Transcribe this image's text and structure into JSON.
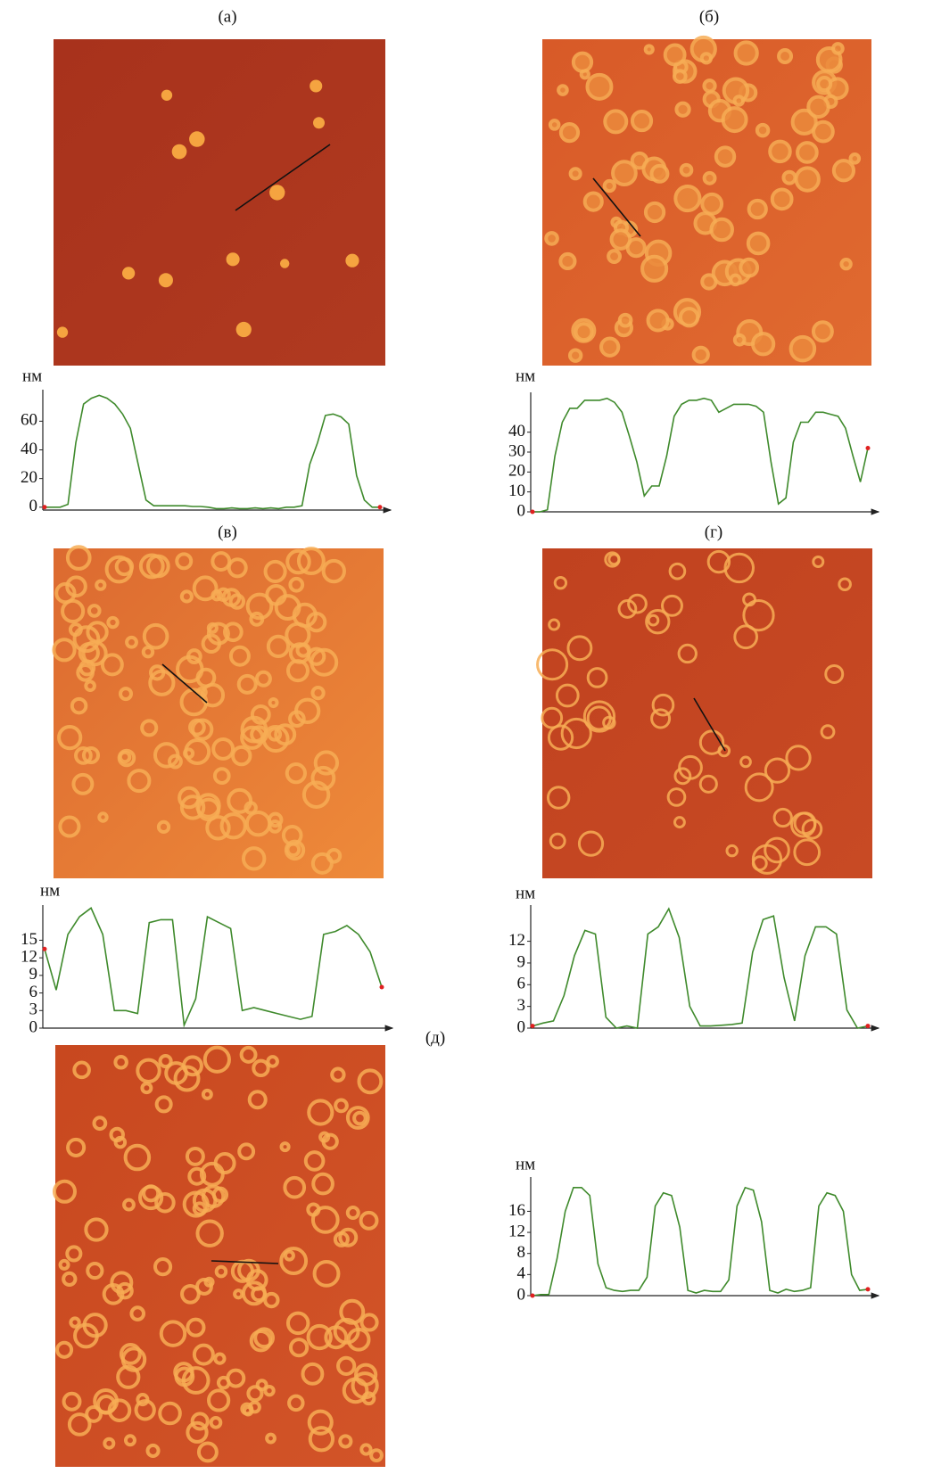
{
  "chart_data": [
    {
      "type": "line",
      "title": "(а)",
      "ylabel": "нм",
      "color": "#3f8a2c",
      "marker_color": "#e02020",
      "values": [
        0,
        0,
        0,
        2,
        45,
        72,
        76,
        78,
        76,
        72,
        65,
        55,
        30,
        5,
        1,
        1,
        1,
        1,
        1,
        0.5,
        0.5,
        0,
        -1,
        -1,
        -0.5,
        -1,
        -1,
        -0.5,
        -1,
        -0.5,
        -1,
        0,
        0,
        1,
        30,
        45,
        64,
        65,
        63,
        58,
        22,
        5,
        0,
        0
      ],
      "ylim": [
        -2,
        82
      ],
      "yticks": [
        0,
        20,
        40,
        60
      ]
    },
    {
      "type": "line",
      "title": "(б)",
      "ylabel": "нм",
      "color": "#3f8a2c",
      "marker_color": "#e02020",
      "values": [
        0,
        0,
        1,
        28,
        45,
        52,
        52,
        56,
        56,
        56,
        57,
        55,
        50,
        38,
        25,
        8,
        13,
        13,
        28,
        48,
        54,
        56,
        56,
        57,
        56,
        50,
        52,
        54,
        54,
        54,
        53,
        50,
        25,
        4,
        7,
        35,
        45,
        45,
        50,
        50,
        49,
        48,
        42,
        28,
        15,
        32
      ],
      "ylim": [
        0,
        60
      ],
      "yticks": [
        0,
        10,
        20,
        30,
        40
      ]
    },
    {
      "type": "line",
      "title": "(в)",
      "ylabel": "нм",
      "color": "#3f8a2c",
      "marker_color": "#e02020",
      "values": [
        13.5,
        6.5,
        16,
        19,
        20.5,
        16,
        3,
        3,
        2.5,
        18,
        18.5,
        18.5,
        0.5,
        5,
        19,
        18,
        17,
        3,
        3.5,
        3,
        2.5,
        2,
        1.5,
        2,
        16,
        16.5,
        17.5,
        16,
        13,
        7
      ],
      "ylim": [
        0,
        21
      ],
      "yticks": [
        0,
        3,
        6,
        9,
        12,
        15
      ]
    },
    {
      "type": "line",
      "title": "(г)",
      "ylabel": "нм",
      "color": "#3f8a2c",
      "marker_color": "#e02020",
      "values": [
        0.3,
        0.7,
        1,
        4.5,
        10,
        13.5,
        13,
        1.5,
        0,
        0.3,
        0,
        13,
        14,
        16.5,
        12.5,
        3,
        0.3,
        0.3,
        0.4,
        0.5,
        0.7,
        10.5,
        15,
        15.5,
        7,
        1,
        10,
        14,
        14,
        13,
        2.5,
        0,
        0.3
      ],
      "ylim": [
        0,
        17
      ],
      "yticks": [
        0,
        3,
        6,
        9,
        12
      ]
    },
    {
      "type": "line",
      "title": "(д)",
      "ylabel": "нм",
      "color": "#3f8a2c",
      "marker_color": "#e02020",
      "values": [
        0,
        0.2,
        0.2,
        7,
        16,
        20.5,
        20.5,
        19,
        6,
        1.5,
        1,
        0.8,
        1,
        1,
        3.5,
        17,
        19.5,
        19,
        13,
        1,
        0.5,
        1,
        0.8,
        0.8,
        3,
        17,
        20.5,
        20,
        14,
        1,
        0.5,
        1.2,
        0.8,
        1,
        1.5,
        17,
        19.5,
        19,
        16,
        4,
        1,
        1.2
      ],
      "ylim": [
        0,
        22.5
      ],
      "yticks": [
        0,
        4,
        8,
        12,
        16
      ]
    }
  ]
}
